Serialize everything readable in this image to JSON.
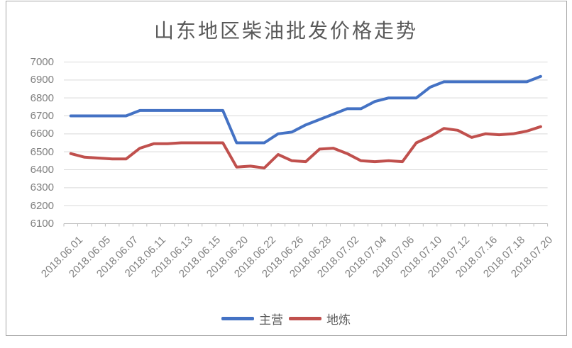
{
  "chart": {
    "title": "山东地区柴油批发价格走势",
    "legend_items": [
      "主营",
      "地炼"
    ]
  },
  "chart_data": {
    "type": "line",
    "title": "山东地区柴油批发价格走势",
    "xlabel": "",
    "ylabel": "",
    "grid": true,
    "legend_position": "bottom",
    "ylim": [
      6100,
      7000
    ],
    "ytick_step": 100,
    "yticks": [
      7000,
      6900,
      6800,
      6700,
      6600,
      6500,
      6400,
      6300,
      6200,
      6100
    ],
    "n_points": 35,
    "x_labels_every_n_points": 2,
    "x_tick_labels": [
      "2018.06.01",
      "2018.06.05",
      "2018.06.07",
      "2018.06.11",
      "2018.06.13",
      "2018.06.15",
      "2018.06.20",
      "2018.06.22",
      "2018.06.26",
      "2018.06.28",
      "2018.07.02",
      "2018.07.04",
      "2018.07.06",
      "2018.07.10",
      "2018.07.12",
      "2018.07.16",
      "2018.07.18",
      "2018.07.20"
    ],
    "series": [
      {
        "name": "主营",
        "color": "#4472C4",
        "values": [
          6700,
          6700,
          6700,
          6700,
          6700,
          6730,
          6730,
          6730,
          6730,
          6730,
          6730,
          6730,
          6550,
          6550,
          6550,
          6600,
          6610,
          6650,
          6680,
          6710,
          6740,
          6740,
          6780,
          6800,
          6800,
          6800,
          6860,
          6890,
          6890,
          6890,
          6890,
          6890,
          6890,
          6890,
          6920
        ]
      },
      {
        "name": "地炼",
        "color": "#C0504D",
        "values": [
          6490,
          6470,
          6465,
          6460,
          6460,
          6520,
          6545,
          6545,
          6550,
          6550,
          6550,
          6550,
          6415,
          6420,
          6410,
          6485,
          6450,
          6445,
          6515,
          6520,
          6490,
          6450,
          6445,
          6450,
          6445,
          6550,
          6585,
          6630,
          6620,
          6580,
          6600,
          6595,
          6600,
          6615,
          6640
        ]
      }
    ]
  },
  "style": {
    "grid_color": "#d9d9d9",
    "axis_line_color": "#c0c0c0",
    "tick_color": "#bfbfbf",
    "axis_text_color": "#7f7f7f",
    "title_color": "#595959",
    "frame_border_color": "#a6a6a6",
    "background": "#ffffff"
  }
}
